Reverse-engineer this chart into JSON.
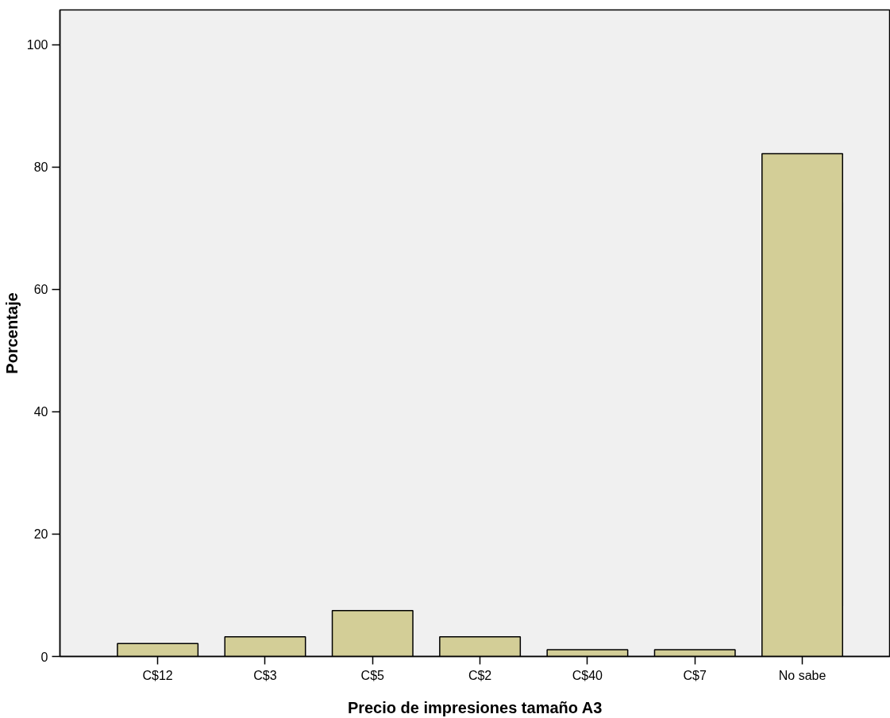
{
  "chart_data": {
    "type": "bar",
    "xlabel": "Precio de impresiones tamaño A3",
    "ylabel": "Porcentaje",
    "categories": [
      "C$12",
      "C$3",
      "C$5",
      "C$2",
      "C$40",
      "C$7",
      "No sabe"
    ],
    "values": [
      2.1,
      3.2,
      7.5,
      3.2,
      1.1,
      1.1,
      82.2
    ],
    "color": "#d3ce97",
    "ylim": [
      0,
      105.7
    ],
    "yticks": [
      0,
      20,
      40,
      60,
      80,
      100
    ],
    "grid": false
  }
}
